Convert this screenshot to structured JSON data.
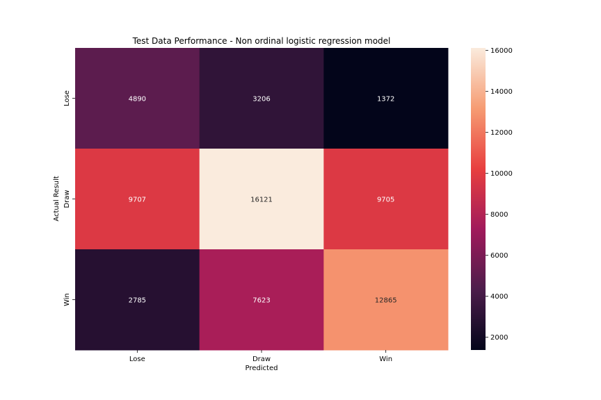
{
  "chart_data": {
    "type": "heatmap",
    "title": "Test Data Performance - Non ordinal logistic regression model",
    "xlabel": "Predicted",
    "ylabel": "Actual Result",
    "x_categories": [
      "Lose",
      "Draw",
      "Win"
    ],
    "y_categories": [
      "Lose",
      "Draw",
      "Win"
    ],
    "values": [
      [
        4890,
        3206,
        1372
      ],
      [
        9707,
        16121,
        9705
      ],
      [
        2785,
        7623,
        12865
      ]
    ],
    "colorbar": {
      "min": 1372,
      "max": 16121,
      "ticks": [
        2000,
        4000,
        6000,
        8000,
        10000,
        12000,
        14000,
        16000
      ],
      "tick_labels": [
        "2000",
        "4000",
        "6000",
        "8000",
        "10000",
        "12000",
        "14000",
        "16000"
      ]
    },
    "colormap_stops": [
      "#03051a",
      "#4c1d4b",
      "#a11a5b",
      "#e83f3f",
      "#f69c73",
      "#faebdd"
    ],
    "legend": "colorbar-right",
    "grid": false
  }
}
